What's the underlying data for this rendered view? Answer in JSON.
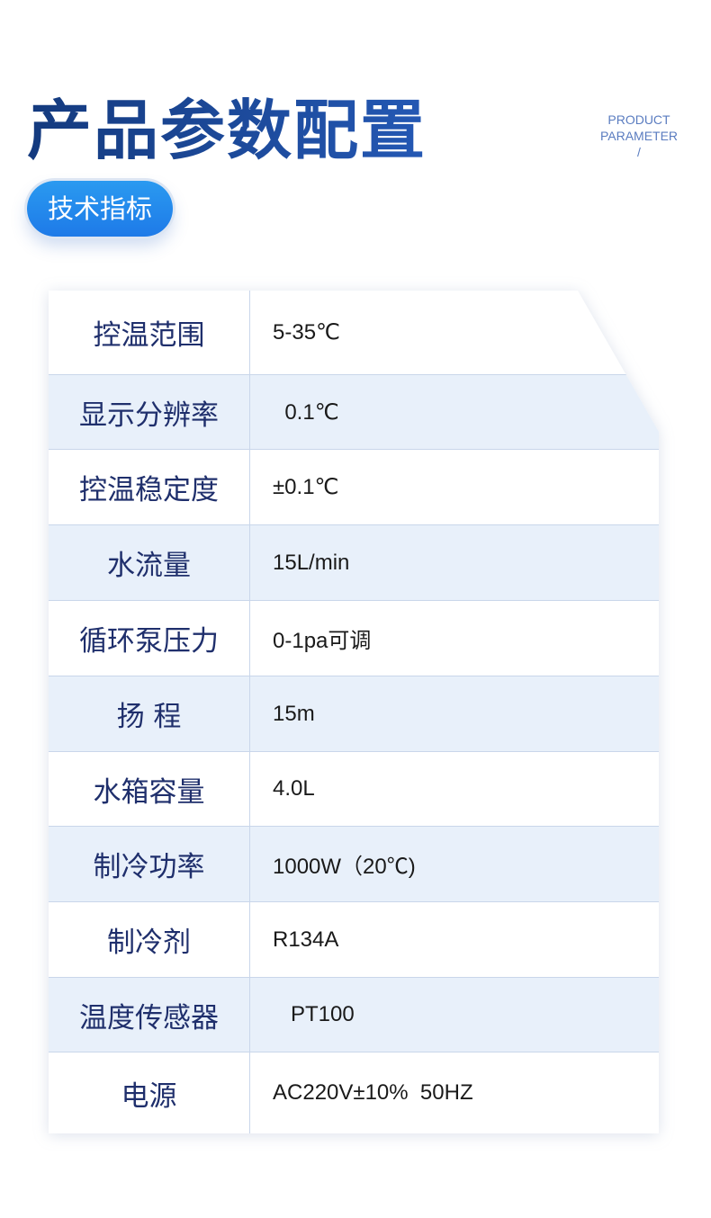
{
  "header": {
    "title": "产品参数配置",
    "en_line1": "PRODUCT",
    "en_line2": "PARAMETER",
    "en_line3": "/",
    "badge": "技术指标"
  },
  "colors": {
    "title": "#173f8c",
    "badge": "#1e7ae8",
    "row_alt": "#e8f0fa",
    "label": "#1f2f6c"
  },
  "rows": [
    {
      "label": "控温范围",
      "value": "5-35℃"
    },
    {
      "label": "显示分辨率",
      "value": "  0.1℃"
    },
    {
      "label": "控温稳定度",
      "value": "±0.1℃"
    },
    {
      "label": "水流量",
      "value": "15L/min"
    },
    {
      "label": "循环泵压力",
      "value": "0-1pa可调"
    },
    {
      "label": "扬 程",
      "value": "15m"
    },
    {
      "label": "水箱容量",
      "value": "4.0L"
    },
    {
      "label": "制冷功率",
      "value": "1000W（20℃)"
    },
    {
      "label": "制冷剂",
      "value": "R134A"
    },
    {
      "label": "温度传感器",
      "value": "   PT100"
    },
    {
      "label": "电源",
      "value": "AC220V±10%  50HZ"
    }
  ]
}
